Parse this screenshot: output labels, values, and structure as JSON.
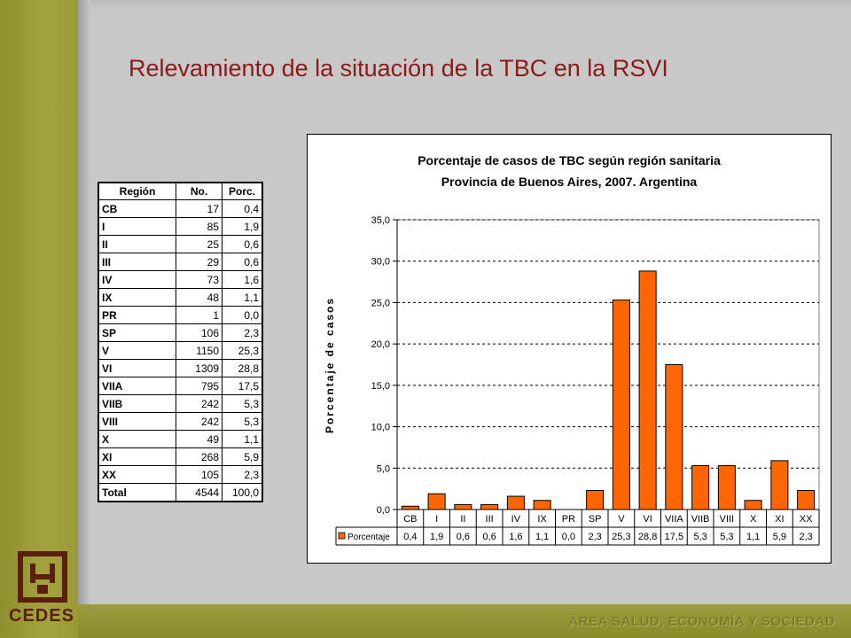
{
  "slide": {
    "title": "Relevamiento de la situación de la TBC en la RSVI",
    "logo_text": "CEDES",
    "footer": "ÁREA SALUD, ECONOMÍA Y SOCIEDAD"
  },
  "colors": {
    "accent": "#8b1a1a",
    "band": "#9a9a36",
    "bar": "#ff6600",
    "logo": "#5c1f0e"
  },
  "table": {
    "headers": [
      "Región",
      "No.",
      "Porc."
    ],
    "rows": [
      [
        "CB",
        "17",
        "0,4"
      ],
      [
        "I",
        "85",
        "1,9"
      ],
      [
        "II",
        "25",
        "0,6"
      ],
      [
        "III",
        "29",
        "0,6"
      ],
      [
        "IV",
        "73",
        "1,6"
      ],
      [
        "IX",
        "48",
        "1,1"
      ],
      [
        "PR",
        "1",
        "0,0"
      ],
      [
        "SP",
        "106",
        "2,3"
      ],
      [
        "V",
        "1150",
        "25,3"
      ],
      [
        "VI",
        "1309",
        "28,8"
      ],
      [
        "VIIA",
        "795",
        "17,5"
      ],
      [
        "VIIB",
        "242",
        "5,3"
      ],
      [
        "VIII",
        "242",
        "5,3"
      ],
      [
        "X",
        "49",
        "1,1"
      ],
      [
        "XI",
        "268",
        "5,9"
      ],
      [
        "XX",
        "105",
        "2,3"
      ],
      [
        "Total",
        "4544",
        "100,0"
      ]
    ]
  },
  "chart_data": {
    "type": "bar",
    "title": "Porcentaje de casos de TBC según región sanitaria",
    "subtitle": "Provincia de Buenos Aires, 2007. Argentina",
    "xlabel": "",
    "ylabel": "Porcentaje de casos",
    "ylim": [
      0,
      35
    ],
    "yticks": [
      "0,0",
      "5,0",
      "10,0",
      "15,0",
      "20,0",
      "25,0",
      "30,0",
      "35,0"
    ],
    "categories": [
      "CB",
      "I",
      "II",
      "III",
      "IV",
      "IX",
      "PR",
      "SP",
      "V",
      "VI",
      "VIIA",
      "VIIB",
      "VIII",
      "X",
      "XI",
      "XX"
    ],
    "series": [
      {
        "name": "Porcentaje",
        "values": [
          0.4,
          1.9,
          0.6,
          0.6,
          1.6,
          1.1,
          0.0,
          2.3,
          25.3,
          28.8,
          17.5,
          5.3,
          5.3,
          1.1,
          5.9,
          2.3
        ],
        "labels": [
          "0,4",
          "1,9",
          "0,6",
          "0,6",
          "1,6",
          "1,1",
          "0,0",
          "2,3",
          "25,3",
          "28,8",
          "17,5",
          "5,3",
          "5,3",
          "1,1",
          "5,9",
          "2,3"
        ]
      }
    ],
    "grid": true,
    "legend": "data-table-bottom"
  }
}
